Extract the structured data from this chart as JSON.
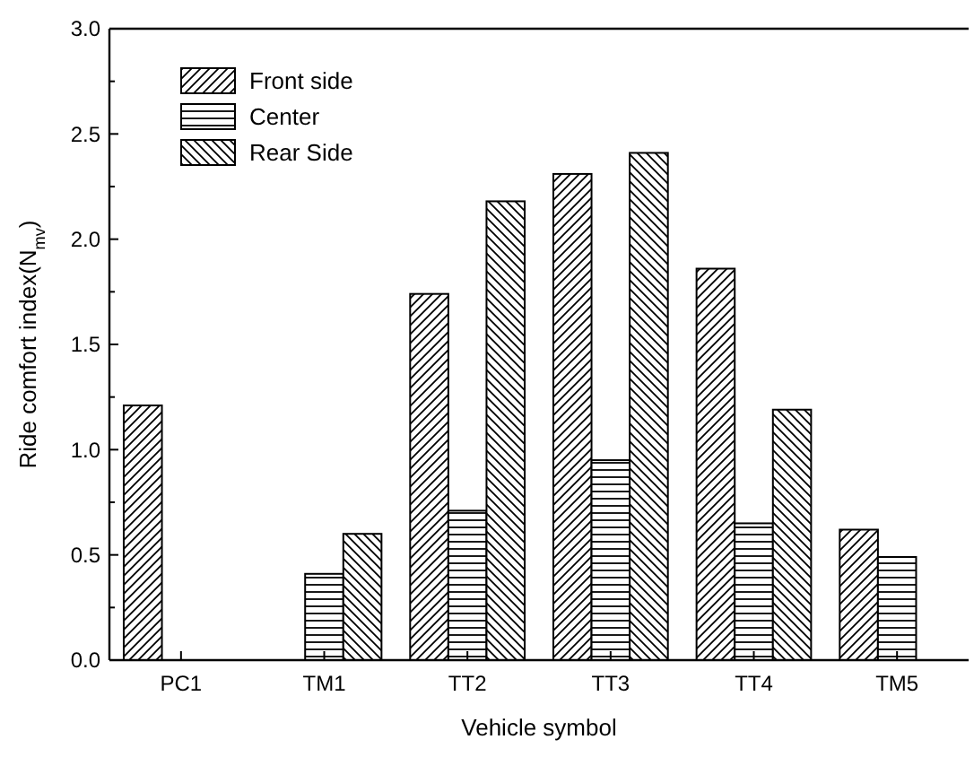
{
  "chart_data": {
    "type": "bar",
    "xlabel": "Vehicle symbol",
    "ylabel": "Ride comfort index(N$_{mv}$)",
    "categories": [
      "PC1",
      "TM1",
      "TT2",
      "TT3",
      "TT4",
      "TM5"
    ],
    "series": [
      {
        "name": "Front side",
        "color": "#000000",
        "values": [
          1.21,
          null,
          1.74,
          2.31,
          1.86,
          0.62
        ]
      },
      {
        "name": "Center",
        "color": "#000000",
        "values": [
          null,
          0.41,
          0.71,
          0.95,
          0.65,
          0.49
        ]
      },
      {
        "name": "Rear Side",
        "color": "#000000",
        "values": [
          null,
          0.6,
          2.18,
          2.41,
          1.19,
          null
        ]
      }
    ],
    "ylim": [
      0,
      3
    ],
    "yticks": [
      {
        "value": 0,
        "label": "0.0"
      },
      {
        "value": 0.25,
        "label": null
      },
      0.5,
      {
        "value": 0.75,
        "label": null
      },
      {
        "value": 1,
        "label": "1.0"
      },
      {
        "value": 1.25,
        "label": null
      },
      1.5,
      {
        "value": 1.75,
        "label": null
      },
      {
        "value": 2,
        "label": "2.0"
      },
      {
        "value": 2.25,
        "label": null
      },
      2.5,
      {
        "value": 2.75,
        "label": null
      },
      {
        "value": 3,
        "label": "3.0"
      }
    ],
    "legend": "top left",
    "grid": false
  }
}
